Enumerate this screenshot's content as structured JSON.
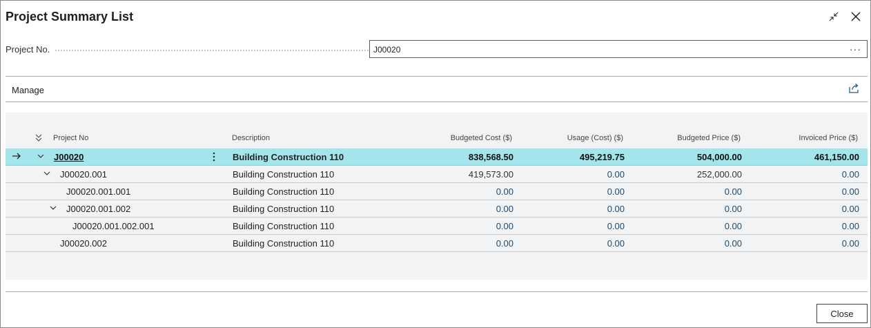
{
  "dialog": {
    "title": "Project Summary List",
    "project_no_label": "Project No.",
    "project_no_value": "J00020",
    "more_glyph": "···",
    "manage_label": "Manage",
    "close_label": "Close"
  },
  "grid": {
    "headers": {
      "project_no": "Project No",
      "description": "Description",
      "budgeted_cost": "Budgeted Cost ($)",
      "usage_cost": "Usage (Cost) ($)",
      "budgeted_price": "Budgeted Price ($)",
      "invoiced_price": "Invoiced Price ($)"
    },
    "rows": [
      {
        "project_no": "J00020",
        "description": "Building Construction 110",
        "budgeted_cost": "838,568.50",
        "usage_cost": "495,219.75",
        "budgeted_price": "504,000.00",
        "invoiced_price": "461,150.00"
      },
      {
        "project_no": "J00020.001",
        "description": "Building Construction 110",
        "budgeted_cost": "419,573.00",
        "usage_cost": "0.00",
        "budgeted_price": "252,000.00",
        "invoiced_price": "0.00"
      },
      {
        "project_no": "J00020.001.001",
        "description": "Building Construction 110",
        "budgeted_cost": "0.00",
        "usage_cost": "0.00",
        "budgeted_price": "0.00",
        "invoiced_price": "0.00"
      },
      {
        "project_no": "J00020.001.002",
        "description": "Building Construction 110",
        "budgeted_cost": "0.00",
        "usage_cost": "0.00",
        "budgeted_price": "0.00",
        "invoiced_price": "0.00"
      },
      {
        "project_no": "J00020.001.002.001",
        "description": "Building Construction 110",
        "budgeted_cost": "0.00",
        "usage_cost": "0.00",
        "budgeted_price": "0.00",
        "invoiced_price": "0.00"
      },
      {
        "project_no": "J00020.002",
        "description": "Building Construction 110",
        "budgeted_cost": "0.00",
        "usage_cost": "0.00",
        "budgeted_price": "0.00",
        "invoiced_price": "0.00"
      }
    ]
  },
  "colors": {
    "selected_row": "#a3e5ea",
    "grid_background": "#f2f3f4",
    "number_text": "#1a4a6e"
  },
  "icons": {
    "collapse_window": "collapse-icon",
    "close_window": "close-icon",
    "share": "share-icon",
    "collapse_all": "collapse-all-icon",
    "row_arrow": "arrow-right-icon",
    "row_expand": "chevron-down-icon",
    "row_menu": "more-vertical-icon"
  }
}
